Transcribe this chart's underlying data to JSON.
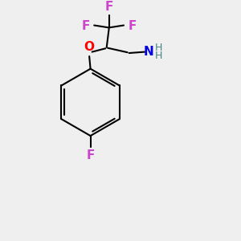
{
  "bg_color": "#efefef",
  "bond_color": "#000000",
  "bond_lw": 1.5,
  "atom_colors": {
    "F": "#cc44cc",
    "O": "#ff0000",
    "N": "#0000dd",
    "H": "#448888"
  },
  "font_size_atom": 11,
  "font_size_H": 9,
  "figsize": [
    3.0,
    3.0
  ],
  "dpi": 100
}
